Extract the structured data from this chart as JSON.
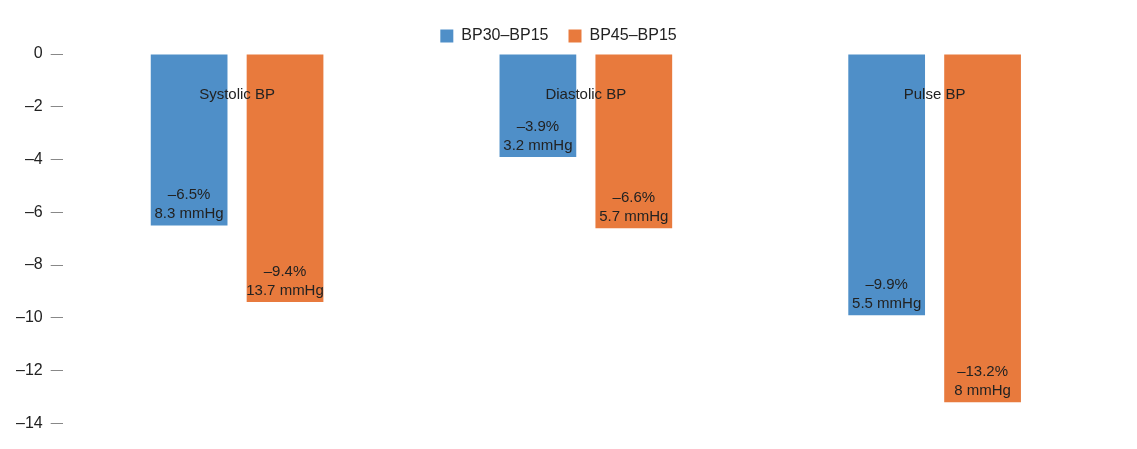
{
  "chart_data": {
    "type": "bar",
    "categories": [
      "Systolic BP",
      "Diastolic BP",
      "Pulse BP"
    ],
    "series": [
      {
        "name": "BP30–BP15",
        "color": "#4f8fc8",
        "values": [
          -6.5,
          -3.9,
          -9.9
        ],
        "value_labels": [
          "–6.5%\n8.3 mmHg",
          "–3.9%\n3.2 mmHg",
          "–9.9%\n5.5 mmHg"
        ]
      },
      {
        "name": "BP45–BP15",
        "color": "#e87a3d",
        "values": [
          -9.4,
          -6.6,
          -13.2
        ],
        "value_labels": [
          "–9.4%\n13.7 mmHg",
          "–6.6%\n5.7 mmHg",
          "–13.2%\n8 mmHg"
        ]
      }
    ],
    "ylim": [
      -14,
      0
    ],
    "yticks": [
      0,
      {
        "value": -2,
        "label": "–2"
      },
      {
        "value": -4,
        "label": "–4"
      },
      {
        "value": -6,
        "label": "–6"
      },
      {
        "value": -8,
        "label": "–8"
      },
      {
        "value": -10,
        "label": "–10"
      },
      {
        "value": -12,
        "label": "–12"
      },
      {
        "value": -14,
        "label": "–14"
      }
    ],
    "grid": false,
    "legend": "top"
  }
}
